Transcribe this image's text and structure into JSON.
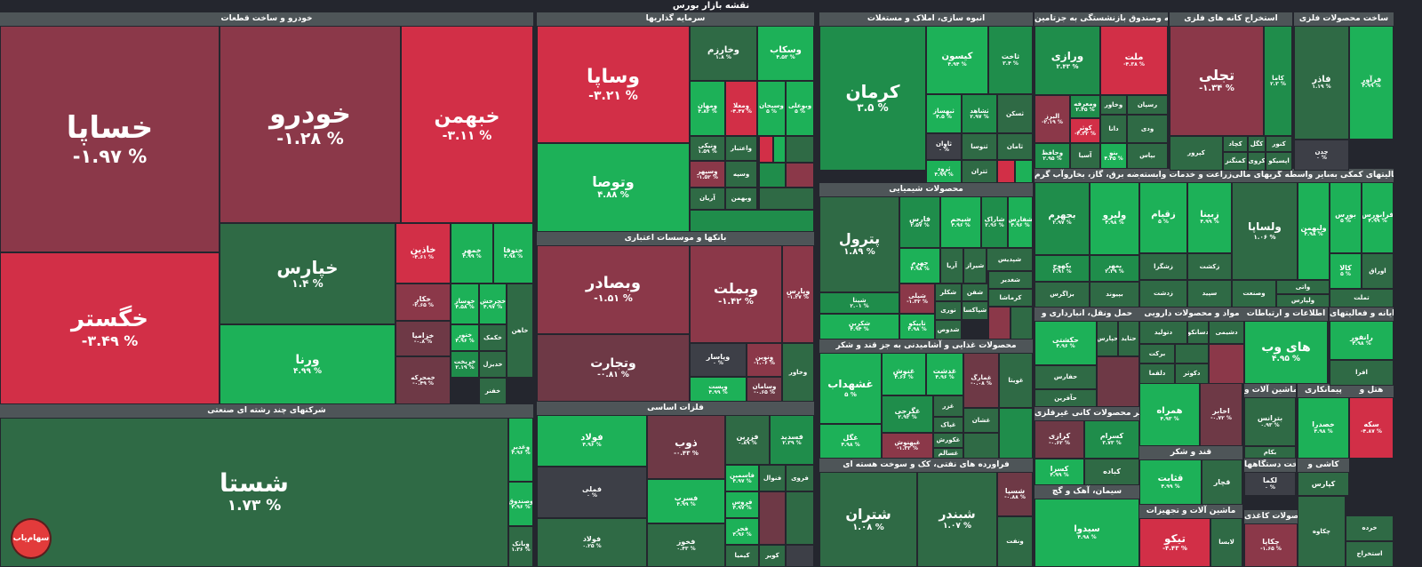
{
  "page_title": "نقشه بازار بورس",
  "logo_text": "سهام‌یاب",
  "colors": {
    "up_strong": "#1db158",
    "up_mid": "#1f8d4b",
    "up_weak": "#2f6a45",
    "flat": "#3d3f47",
    "down_weak": "#6e3946",
    "down_mid": "#8b3849",
    "down_strong": "#d22f47",
    "background": "#24262e",
    "header": "#4e5558"
  },
  "chart_data": {
    "type": "treemap",
    "title": "نقشه بازار بورس",
    "value_unit": "%",
    "sectors": [
      {
        "name": "خودرو و ساخت قطعات",
        "stocks": [
          {
            "symbol": "خساپا",
            "change": "-۱.۹۷"
          },
          {
            "symbol": "خگستر",
            "change": "-۳.۴۹"
          },
          {
            "symbol": "خودرو",
            "change": "-۱.۲۸"
          },
          {
            "symbol": "خبهمن",
            "change": "-۳.۱۱"
          },
          {
            "symbol": "خپارس",
            "change": "۱.۴"
          },
          {
            "symbol": "ورنا",
            "change": "۴.۹۹"
          },
          {
            "symbol": "خاذین",
            "change": "-۴.۶۱"
          },
          {
            "symbol": "خمهر",
            "change": "۴.۹۹"
          },
          {
            "symbol": "ختوقا",
            "change": "۴.۹۸"
          },
          {
            "symbol": "خکار",
            "change": "-۲.۶۵"
          },
          {
            "symbol": "خزامیا",
            "change": "-۰.۸"
          },
          {
            "symbol": "خمحرکه",
            "change": "-۰.۴۹"
          },
          {
            "symbol": "خوساز",
            "change": "۴.۵۸"
          },
          {
            "symbol": "خچرخش",
            "change": "۴.۹۷"
          },
          {
            "symbol": "ختور",
            "change": "۴.۹۶"
          },
          {
            "symbol": "خریخت",
            "change": "۲.۱۹"
          },
          {
            "symbol": "خفنر",
            "change": ""
          },
          {
            "symbol": "خکمک",
            "change": ""
          },
          {
            "symbol": "خدیزل",
            "change": ""
          },
          {
            "symbol": "خاهن",
            "change": ""
          }
        ]
      },
      {
        "name": "شرکتهای چند رشته ای صنعتی",
        "stocks": [
          {
            "symbol": "شستا",
            "change": "۱.۷۳"
          },
          {
            "symbol": "وغدیر",
            "change": "۴.۹۶"
          },
          {
            "symbol": "وصندوق",
            "change": "۴.۹۶"
          },
          {
            "symbol": "وبانک",
            "change": "۱.۳۶"
          }
        ]
      },
      {
        "name": "سرمایه گذاریها",
        "stocks": [
          {
            "symbol": "وساپا",
            "change": "-۳.۲۱"
          },
          {
            "symbol": "وتوصا",
            "change": "۴.۸۸"
          },
          {
            "symbol": "وخارزم",
            "change": "۱.۸"
          },
          {
            "symbol": "وسکاب",
            "change": "۴.۵۳"
          },
          {
            "symbol": "ومهان",
            "change": "۴.۸۲"
          },
          {
            "symbol": "ومعلا",
            "change": "-۴.۴۷"
          },
          {
            "symbol": "وسبحان",
            "change": "۵"
          },
          {
            "symbol": "وبوعلی",
            "change": "۵"
          },
          {
            "symbol": "ونیکی",
            "change": "۱.۵۹"
          },
          {
            "symbol": "وسپهر",
            "change": "-۱.۵۲"
          },
          {
            "symbol": "واعتبار",
            "change": ""
          },
          {
            "symbol": "وسپه",
            "change": ""
          },
          {
            "symbol": "آریان",
            "change": ""
          },
          {
            "symbol": "وبهمن",
            "change": ""
          }
        ]
      },
      {
        "name": "بانکها و موسسات اعتباری",
        "stocks": [
          {
            "symbol": "وبصادر",
            "change": "-۱.۵۱"
          },
          {
            "symbol": "وبملت",
            "change": "-۱.۴۲"
          },
          {
            "symbol": "وتجارت",
            "change": "-۰.۸۱"
          },
          {
            "symbol": "وپاسار",
            "change": "۰"
          },
          {
            "symbol": "ونوین",
            "change": "-۱.۰۶"
          },
          {
            "symbol": "وپست",
            "change": "۴.۹۹"
          },
          {
            "symbol": "وسامان",
            "change": "-۰.۶۵"
          },
          {
            "symbol": "وپارس",
            "change": "-۱.۲۷"
          },
          {
            "symbol": "وخاور",
            "change": ""
          }
        ]
      },
      {
        "name": "فلزات اساسی",
        "stocks": [
          {
            "symbol": "فولاد",
            "change": "۴.۹۶"
          },
          {
            "symbol": "ذوب",
            "change": "-۰.۴۳"
          },
          {
            "symbol": "فزرین",
            "change": "۰.۸۹"
          },
          {
            "symbol": "فسدید",
            "change": "۲.۳۹"
          },
          {
            "symbol": "فملی",
            "change": "۰"
          },
          {
            "symbol": "فولاد ",
            "change": "۰.۲۵"
          },
          {
            "symbol": "فسرب",
            "change": "۴.۹۹"
          },
          {
            "symbol": "فخوز",
            "change": "۰.۴۳"
          },
          {
            "symbol": "فاسمین",
            "change": "۴.۹۷"
          },
          {
            "symbol": "فروس",
            "change": "۴.۹۷"
          },
          {
            "symbol": "فجر",
            "change": "۴.۹۶"
          },
          {
            "symbol": "فنوال",
            "change": ""
          },
          {
            "symbol": "فروی",
            "change": ""
          },
          {
            "symbol": "کیمیا",
            "change": ""
          },
          {
            "symbol": "کویر",
            "change": ""
          }
        ]
      },
      {
        "name": "انبوه سازی، املاک و مستغلات",
        "stocks": [
          {
            "symbol": "کرمان",
            "change": "۳.۵"
          },
          {
            "symbol": "کیسون",
            "change": "۴.۹۴"
          },
          {
            "symbol": "ثاخت",
            "change": "۳.۴"
          },
          {
            "symbol": "ثبهساز",
            "change": "۴.۵"
          },
          {
            "symbol": "ثشاهد",
            "change": "۲.۹۷"
          },
          {
            "symbol": "ثسکن",
            "change": ""
          },
          {
            "symbol": "ثاوان",
            "change": "۰"
          },
          {
            "symbol": "ثرود",
            "change": "۴.۹۹"
          },
          {
            "symbol": "ثنوسا",
            "change": ""
          },
          {
            "symbol": "ثتران",
            "change": ""
          },
          {
            "symbol": "ثامان",
            "change": ""
          }
        ]
      },
      {
        "name": "محصولات شیمیایی",
        "stocks": [
          {
            "symbol": "پترول",
            "change": "۱.۸۹"
          },
          {
            "symbol": "فارس",
            "change": "۲.۵۷"
          },
          {
            "symbol": "شیجم",
            "change": "۴.۹۶"
          },
          {
            "symbol": "شاراک",
            "change": "۲.۹۶"
          },
          {
            "symbol": "شفارس",
            "change": "۴.۹۶"
          },
          {
            "symbol": "شپنا",
            "change": "۲.۰۱"
          },
          {
            "symbol": "شکربن",
            "change": "۴.۹۴"
          },
          {
            "symbol": "جهرم",
            "change": "۴.۹۸"
          },
          {
            "symbol": "آریا",
            "change": ""
          },
          {
            "symbol": "شیراز",
            "change": ""
          },
          {
            "symbol": "شپلی",
            "change": "-۱.۳۲"
          },
          {
            "symbol": "تاپیکو",
            "change": "۴.۹۸"
          },
          {
            "symbol": "شپدیس",
            "change": ""
          },
          {
            "symbol": "شکلر",
            "change": ""
          },
          {
            "symbol": "شفن",
            "change": ""
          },
          {
            "symbol": "شغدیر",
            "change": ""
          },
          {
            "symbol": "کرماشا",
            "change": ""
          },
          {
            "symbol": "نوری",
            "change": ""
          },
          {
            "symbol": "شدوص",
            "change": ""
          },
          {
            "symbol": "شپاکسا",
            "change": ""
          }
        ]
      },
      {
        "name": "محصولات غذایی و آشامیدنی به جز قند و شکر",
        "stocks": [
          {
            "symbol": "غشهداب",
            "change": "۵"
          },
          {
            "symbol": "غنوش",
            "change": "۴.۶۶"
          },
          {
            "symbol": "غدشت",
            "change": "۴.۹۶"
          },
          {
            "symbol": "غمارگ",
            "change": "-۰.۰۸"
          },
          {
            "symbol": "غویتا",
            "change": ""
          },
          {
            "symbol": "غگرجی",
            "change": "۲.۹۲"
          },
          {
            "symbol": "غبهنوش",
            "change": "-۱.۳۳"
          },
          {
            "symbol": "غگل",
            "change": "۴.۹۸"
          },
          {
            "symbol": "غزر",
            "change": ""
          },
          {
            "symbol": "غپاک",
            "change": ""
          },
          {
            "symbol": "غکورش",
            "change": ""
          },
          {
            "symbol": "غسالم",
            "change": ""
          },
          {
            "symbol": "غشان",
            "change": ""
          }
        ]
      },
      {
        "name": "استخراج کانه های فلزی",
        "stocks": [
          {
            "symbol": "تجلی",
            "change": "-۱.۳۴"
          },
          {
            "symbol": "کاما",
            "change": "۲.۳"
          },
          {
            "symbol": "کچاد",
            "change": ""
          },
          {
            "symbol": "کگل",
            "change": ""
          },
          {
            "symbol": "کنور",
            "change": ""
          },
          {
            "symbol": "کمنگنز",
            "change": ""
          },
          {
            "symbol": "کروی",
            "change": ""
          },
          {
            "symbol": "اپسیکو",
            "change": ""
          },
          {
            "symbol": "کپرور",
            "change": ""
          }
        ]
      },
      {
        "name": "ساخت محصولات فلزی",
        "stocks": [
          {
            "symbol": "فاذر",
            "change": "۱.۱۹"
          },
          {
            "symbol": "فرآور",
            "change": "۴.۹۹"
          },
          {
            "symbol": "چدن",
            "change": "۰"
          }
        ]
      },
      {
        "name": "بیمه وصندوق بازنشستگی به جزتامین",
        "stocks": [
          {
            "symbol": "ورازی",
            "change": "۲.۴۳"
          },
          {
            "symbol": "ملت",
            "change": "-۴.۳۸"
          },
          {
            "symbol": "البرز",
            "change": "-۲.۱۹"
          },
          {
            "symbol": "ومعرفه",
            "change": "۲.۴۵"
          },
          {
            "symbol": "کوثر",
            "change": "-۴.۳۲"
          },
          {
            "symbol": "وحافظ",
            "change": "۲.۹۵"
          },
          {
            "symbol": "آسیا",
            "change": ""
          },
          {
            "symbol": "بنو",
            "change": "۴.۴۵"
          },
          {
            "symbol": "وخاور",
            "change": ""
          },
          {
            "symbol": "دانا",
            "change": ""
          },
          {
            "symbol": "رسپان",
            "change": ""
          },
          {
            "symbol": "ودی",
            "change": ""
          },
          {
            "symbol": "بپاس",
            "change": ""
          },
          {
            "symbol": "ما",
            "change": ""
          },
          {
            "symbol": "وسین",
            "change": ""
          }
        ]
      },
      {
        "name": "عرضه برق، گاز، بخاروآب گرم",
        "stocks": [
          {
            "symbol": "بجهرم",
            "change": "۲.۹۷"
          },
          {
            "symbol": "ولیرو",
            "change": "۴.۹۸"
          },
          {
            "symbol": "بکهوج",
            "change": "۳.۹۱"
          },
          {
            "symbol": "بمهر",
            "change": "۲.۳۹"
          },
          {
            "symbol": "بزاگرس",
            "change": ""
          },
          {
            "symbol": "بپیوند",
            "change": ""
          }
        ]
      },
      {
        "name": "زراعت و خدمات وابسته",
        "stocks": [
          {
            "symbol": "زقیام",
            "change": "۵"
          },
          {
            "symbol": "زبینا",
            "change": "۴.۹۹"
          },
          {
            "symbol": "زشگزا",
            "change": ""
          },
          {
            "symbol": "زدشت",
            "change": ""
          },
          {
            "symbol": "زکشت",
            "change": ""
          },
          {
            "symbol": "زملارد",
            "change": ""
          },
          {
            "symbol": "سپید",
            "change": ""
          }
        ]
      },
      {
        "name": "سایر واسطه گریهای مالی",
        "stocks": [
          {
            "symbol": "ولساپا",
            "change": "۱.۰۶"
          },
          {
            "symbol": "ولبهمن",
            "change": "۴.۹۸"
          },
          {
            "symbol": "وصنعت",
            "change": ""
          },
          {
            "symbol": "واتی",
            "change": ""
          },
          {
            "symbol": "ولپارس",
            "change": ""
          }
        ]
      },
      {
        "name": "فعالیتهای کمکی به",
        "stocks": [
          {
            "symbol": "بورس",
            "change": "۵"
          },
          {
            "symbol": "فرابورس",
            "change": "۴.۹۹"
          },
          {
            "symbol": "کالا",
            "change": "۵"
          },
          {
            "symbol": "اوراق",
            "change": ""
          },
          {
            "symbol": "تملت",
            "change": ""
          }
        ]
      },
      {
        "name": "حمل ونقل، انبارداری و",
        "stocks": [
          {
            "symbol": "حکشتی",
            "change": "۴.۹۶"
          },
          {
            "symbol": "حپارس",
            "change": ""
          },
          {
            "symbol": "حتاید",
            "change": ""
          },
          {
            "symbol": "حفارس",
            "change": ""
          },
          {
            "symbol": "حآفرین",
            "change": ""
          }
        ]
      },
      {
        "name": "مواد و محصولات دارویی",
        "stocks": [
          {
            "symbol": "دتولید",
            "change": ""
          },
          {
            "symbol": "دسانکو",
            "change": ""
          },
          {
            "symbol": "برکت",
            "change": ""
          },
          {
            "symbol": "دلقما",
            "change": ""
          },
          {
            "symbol": "دکوثر",
            "change": ""
          },
          {
            "symbol": "دشیمی",
            "change": ""
          }
        ]
      },
      {
        "name": "اطلاعات و ارتباطات",
        "stocks": [
          {
            "symbol": "های وب",
            "change": "۴.۹۵"
          }
        ]
      },
      {
        "name": "رایانه و فعالیتهای",
        "stocks": [
          {
            "symbol": "رانفور",
            "change": "۴.۹۸"
          },
          {
            "symbol": "افرا",
            "change": ""
          }
        ]
      },
      {
        "name": "مخابرات",
        "stocks": [
          {
            "symbol": "همراه",
            "change": "۴.۹۳"
          },
          {
            "symbol": "اخابر",
            "change": "-۰.۷۲"
          }
        ]
      },
      {
        "name": "ماشین آلات و",
        "stocks": [
          {
            "symbol": "بترانس",
            "change": "۰.۹۳"
          },
          {
            "symbol": "بکام",
            "change": ""
          }
        ]
      },
      {
        "name": "پیمانکاری",
        "stocks": [
          {
            "symbol": "خصدرا",
            "change": "۴.۹۸"
          }
        ]
      },
      {
        "name": "هتل و",
        "stocks": [
          {
            "symbol": "سکه",
            "change": "-۴.۸۷"
          }
        ]
      },
      {
        "name": "سایر محصولات کانی غیرفلزی",
        "stocks": [
          {
            "symbol": "کرازی",
            "change": "-۰.۶۲"
          },
          {
            "symbol": "کسرام",
            "change": "۳.۷۳"
          },
          {
            "symbol": "کسرا",
            "change": "۴.۹۹"
          },
          {
            "symbol": "کباده",
            "change": ""
          }
        ]
      },
      {
        "name": "سیمان، آهک و گچ",
        "stocks": [
          {
            "symbol": "سیدوا",
            "change": "۴.۹۸"
          }
        ]
      },
      {
        "name": "قند و شکر",
        "stocks": [
          {
            "symbol": "قثابت",
            "change": "۴.۹۹"
          },
          {
            "symbol": "قچار",
            "change": ""
          }
        ]
      },
      {
        "name": "ساخت دستگاهها",
        "stocks": [
          {
            "symbol": "لکما",
            "change": "۰"
          }
        ]
      },
      {
        "name": "کاشی و",
        "stocks": [
          {
            "symbol": "کپارس",
            "change": ""
          }
        ]
      },
      {
        "name": "ماشین آلات و تجهیزات",
        "stocks": [
          {
            "symbol": "تیکو",
            "change": "-۴.۴۳"
          },
          {
            "symbol": "لابسا",
            "change": ""
          }
        ]
      },
      {
        "name": "محصولات کاغذی",
        "stocks": [
          {
            "symbol": "چکاپا",
            "change": "-۱.۶۵"
          },
          {
            "symbol": "چکاوه",
            "change": ""
          }
        ]
      },
      {
        "name": "تیک",
        "stocks": [
          {
            "symbol": "خرده",
            "change": ""
          },
          {
            "symbol": "استخراج",
            "change": ""
          }
        ]
      },
      {
        "name": "فراورده های نفتی، کک و سوخت هسته ای",
        "stocks": [
          {
            "symbol": "شتران",
            "change": "۱.۰۸"
          },
          {
            "symbol": "شبندر",
            "change": "۱.۰۷"
          },
          {
            "symbol": "شسپا",
            "change": "-۰.۸۸"
          },
          {
            "symbol": "ونفت",
            "change": ""
          }
        ]
      }
    ]
  }
}
